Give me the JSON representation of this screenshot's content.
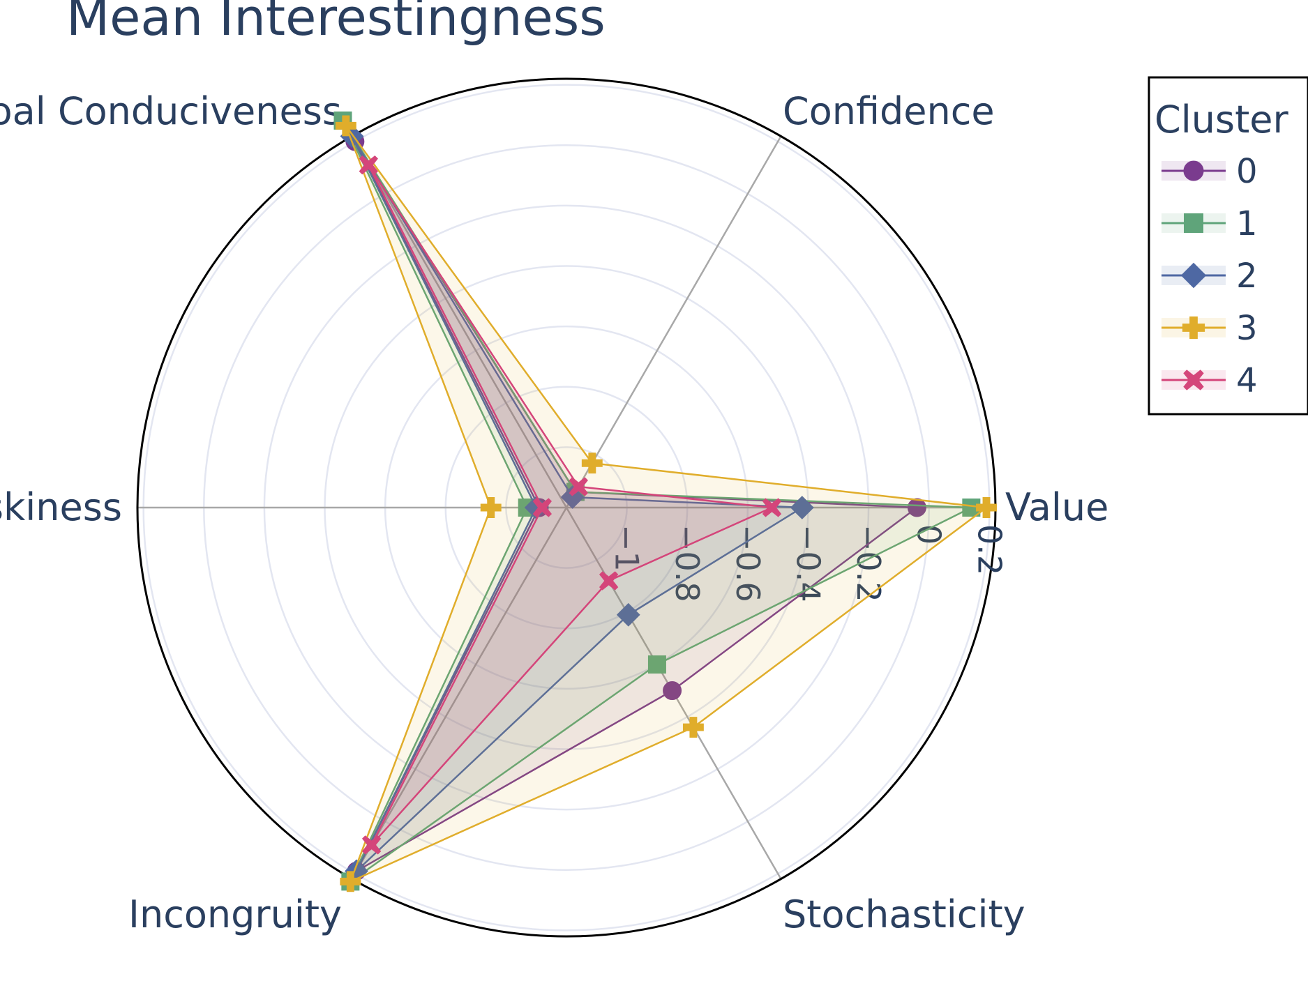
{
  "chart_data": {
    "type": "radar",
    "title": "Mean Interestingness",
    "axes": [
      "Value",
      "Confidence",
      "Goal Conduciveness",
      "Riskiness",
      "Incongruity",
      "Stochasticity"
    ],
    "radial_range": [
      -1.2,
      0.22
    ],
    "radial_ticks": [
      -1,
      -0.8,
      -0.6,
      -0.4,
      -0.2,
      0,
      0.2
    ],
    "radial_tick_labels": [
      "−1",
      "−0.8",
      "−0.6",
      "−0.4",
      "−0.2",
      "0",
      "0.2"
    ],
    "legend_title": "Cluster",
    "legend_position": "top-right",
    "series": [
      {
        "name": "0",
        "values": [
          -0.04,
          -1.14,
          0.2,
          -1.11,
          0.19,
          -0.5
        ],
        "color": "#7a3b8e",
        "marker": "circle"
      },
      {
        "name": "1",
        "values": [
          0.14,
          -1.14,
          0.28,
          -1.07,
          0.23,
          -0.6
        ],
        "color": "#5fa47a",
        "marker": "square"
      },
      {
        "name": "2",
        "values": [
          -0.42,
          -1.16,
          0.22,
          -1.1,
          0.19,
          -0.79
        ],
        "color": "#4e68a3",
        "marker": "diamond"
      },
      {
        "name": "3",
        "values": [
          0.19,
          -1.03,
          0.26,
          -0.95,
          0.23,
          -0.36
        ],
        "color": "#e0ad2b",
        "marker": "cross"
      },
      {
        "name": "4",
        "values": [
          -0.52,
          -1.12,
          0.11,
          -1.12,
          0.09,
          -0.92
        ],
        "color": "#d4457a",
        "marker": "x"
      }
    ],
    "grid": true
  }
}
